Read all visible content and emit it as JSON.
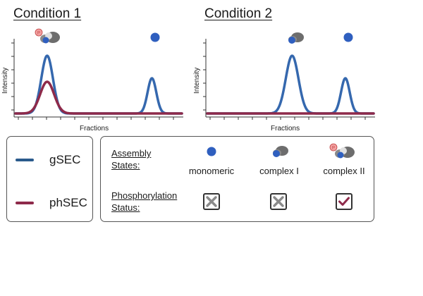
{
  "panels": [
    {
      "title": "Condition 1",
      "xlabel": "Fractions",
      "ylabel": "Intensity"
    },
    {
      "title": "Condition 2",
      "xlabel": "Fractions",
      "ylabel": "Intensity"
    }
  ],
  "chart_data": [
    {
      "type": "line",
      "title": "Condition 1",
      "xlabel": "Fractions",
      "ylabel": "Intensity",
      "series": [
        {
          "name": "gSEC",
          "color": "#3568ae",
          "peaks": [
            {
              "center": 0.19,
              "height": 0.82,
              "width": 0.035
            },
            {
              "center": 0.82,
              "height": 0.5,
              "width": 0.026
            }
          ]
        },
        {
          "name": "phSEC",
          "color": "#8e2a4a",
          "peaks": [
            {
              "center": 0.19,
              "height": 0.45,
              "width": 0.042
            }
          ]
        }
      ],
      "peak_icons": [
        "complex II",
        "monomeric"
      ]
    },
    {
      "type": "line",
      "title": "Condition 2",
      "xlabel": "Fractions",
      "ylabel": "Intensity",
      "series": [
        {
          "name": "gSEC",
          "color": "#3568ae",
          "peaks": [
            {
              "center": 0.51,
              "height": 0.82,
              "width": 0.038
            },
            {
              "center": 0.83,
              "height": 0.5,
              "width": 0.026
            }
          ]
        },
        {
          "name": "phSEC",
          "color": "#8e2a4a",
          "peaks": []
        }
      ],
      "peak_icons": [
        "complex I",
        "monomeric"
      ]
    }
  ],
  "legend": [
    {
      "label": "gSEC",
      "color": "#2a5a8c"
    },
    {
      "label": "phSEC",
      "color": "#8e2a4a"
    }
  ],
  "key": {
    "assembly_heading": "Assembly States:",
    "assembly_line1": "Assembly",
    "assembly_line2": "States:",
    "phospho_line1": "Phosphorylation",
    "phospho_line2": "Status:",
    "states": [
      {
        "label": "monomeric",
        "phosphorylated": false
      },
      {
        "label": "complex I",
        "phosphorylated": false
      },
      {
        "label": "complex II",
        "phosphorylated": true
      }
    ]
  },
  "colors": {
    "blue_protein": "#2f5fbf",
    "grey_protein": "#6d6d6d",
    "phospho_badge": "#f2a0a0",
    "cross": "#8a8a8a",
    "check": "#8e2a4a"
  }
}
